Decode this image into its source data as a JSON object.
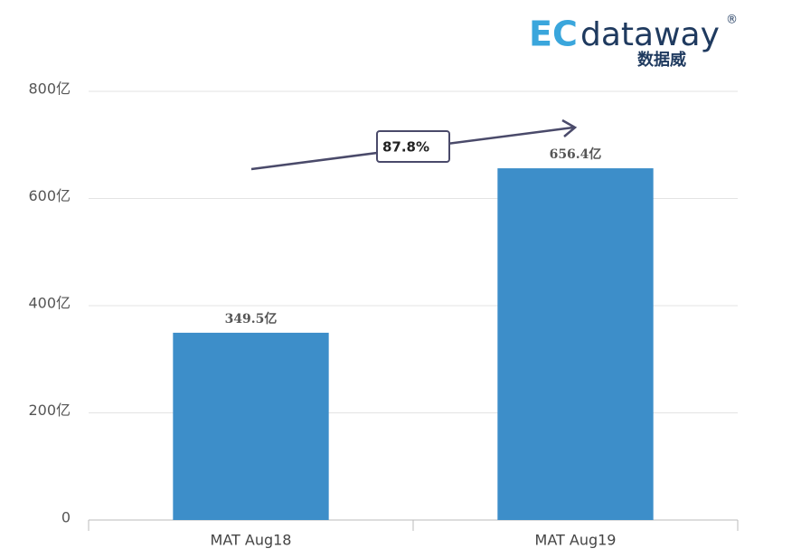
{
  "chart_data": {
    "type": "bar",
    "categories": [
      "MAT Aug18",
      "MAT Aug19"
    ],
    "values": [
      349.5,
      656.4
    ],
    "value_labels": [
      "349.5亿",
      "656.4亿"
    ],
    "color": "#3d8ec9",
    "ylim": [
      0,
      800
    ],
    "yticks": [
      0,
      {
        "value": 200,
        "label": "200亿"
      },
      {
        "value": 400,
        "label": "400亿"
      },
      {
        "value": 600,
        "label": "600亿"
      },
      {
        "value": 800,
        "label": "800亿"
      }
    ],
    "grid": true,
    "annotation": "87.8%"
  },
  "logo": {
    "prefix": "EC",
    "brand": "dataway",
    "sub": "数据威",
    "mark": "®"
  }
}
